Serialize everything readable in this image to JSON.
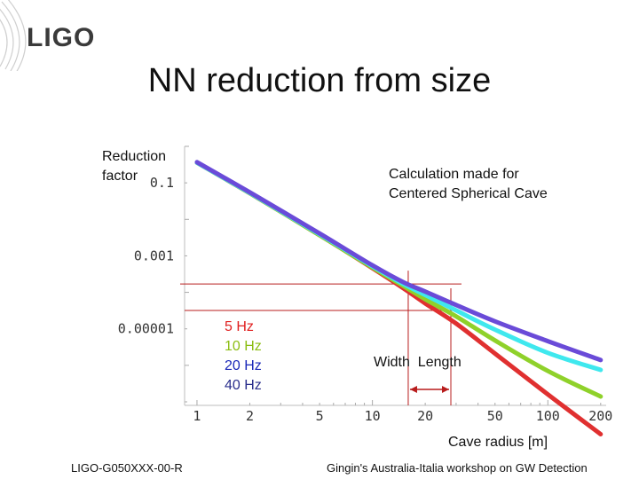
{
  "header": {
    "logo_text": "LIGO",
    "title": "NN reduction from size"
  },
  "annotations": {
    "ylabel_line1": "Reduction",
    "ylabel_line2": "factor",
    "note_line1": "Calculation made for",
    "note_line2": "Centered Spherical Cave",
    "width_length": "Width  Length"
  },
  "footer": {
    "left": "LIGO-G050XXX-00-R",
    "right": "Gingin's Australia-Italia workshop on GW Detection"
  },
  "colors": {
    "5hz": "#e03030",
    "10hz": "#8fd12a",
    "20hz": "#3fe8ee",
    "40hz": "#6a4bd8",
    "guide": "#b81c1c"
  },
  "chart_data": {
    "type": "line",
    "title": "NN reduction from size",
    "xlabel": "Cave radius [m]",
    "ylabel": "Reduction factor",
    "xscale": "log",
    "yscale": "log",
    "xlim": [
      0.85,
      215
    ],
    "ylim": [
      8e-08,
      1.0
    ],
    "xticks": [
      1,
      2,
      5,
      10,
      20,
      50,
      100,
      200
    ],
    "xtick_labels": [
      "1",
      "2",
      "5",
      "10",
      "20",
      "50",
      "100",
      "200"
    ],
    "yticks": [
      0.1,
      0.001,
      1e-05
    ],
    "ytick_labels": [
      "0.1",
      "0.001",
      "0.00001"
    ],
    "legend": [
      "5 Hz",
      "10 Hz",
      "20 Hz",
      "40 Hz"
    ],
    "series": [
      {
        "name": "5 Hz",
        "x": [
          1,
          2,
          5,
          10,
          15,
          20,
          30,
          50,
          100,
          200
        ],
        "y": [
          0.36,
          0.052,
          0.0037,
          0.00046,
          0.00013,
          5e-05,
          1.4e-05,
          2.1e-06,
          1.6e-07,
          1.3e-08
        ]
      },
      {
        "name": "10 Hz",
        "x": [
          1,
          2,
          5,
          10,
          15,
          20,
          30,
          50,
          100,
          200
        ],
        "y": [
          0.36,
          0.052,
          0.0037,
          0.00048,
          0.00015,
          6.5e-05,
          2.2e-05,
          4.8e-06,
          7e-07,
          1.4e-07
        ]
      },
      {
        "name": "20 Hz",
        "x": [
          1,
          2,
          5,
          10,
          15,
          20,
          30,
          50,
          100,
          200
        ],
        "y": [
          0.36,
          0.053,
          0.0039,
          0.00052,
          0.00017,
          8.5e-05,
          3.2e-05,
          9.5e-06,
          2.2e-06,
          7.5e-07
        ]
      },
      {
        "name": "40 Hz",
        "x": [
          1,
          2,
          5,
          10,
          15,
          20,
          30,
          50,
          100,
          200
        ],
        "y": [
          0.37,
          0.055,
          0.0041,
          0.00055,
          0.00019,
          0.000105,
          4.5e-05,
          1.6e-05,
          4.6e-06,
          1.4e-06
        ]
      }
    ],
    "guides": {
      "width_x": 16,
      "length_x": 28,
      "width_y": 0.00017,
      "length_y": 3.2e-05
    }
  }
}
